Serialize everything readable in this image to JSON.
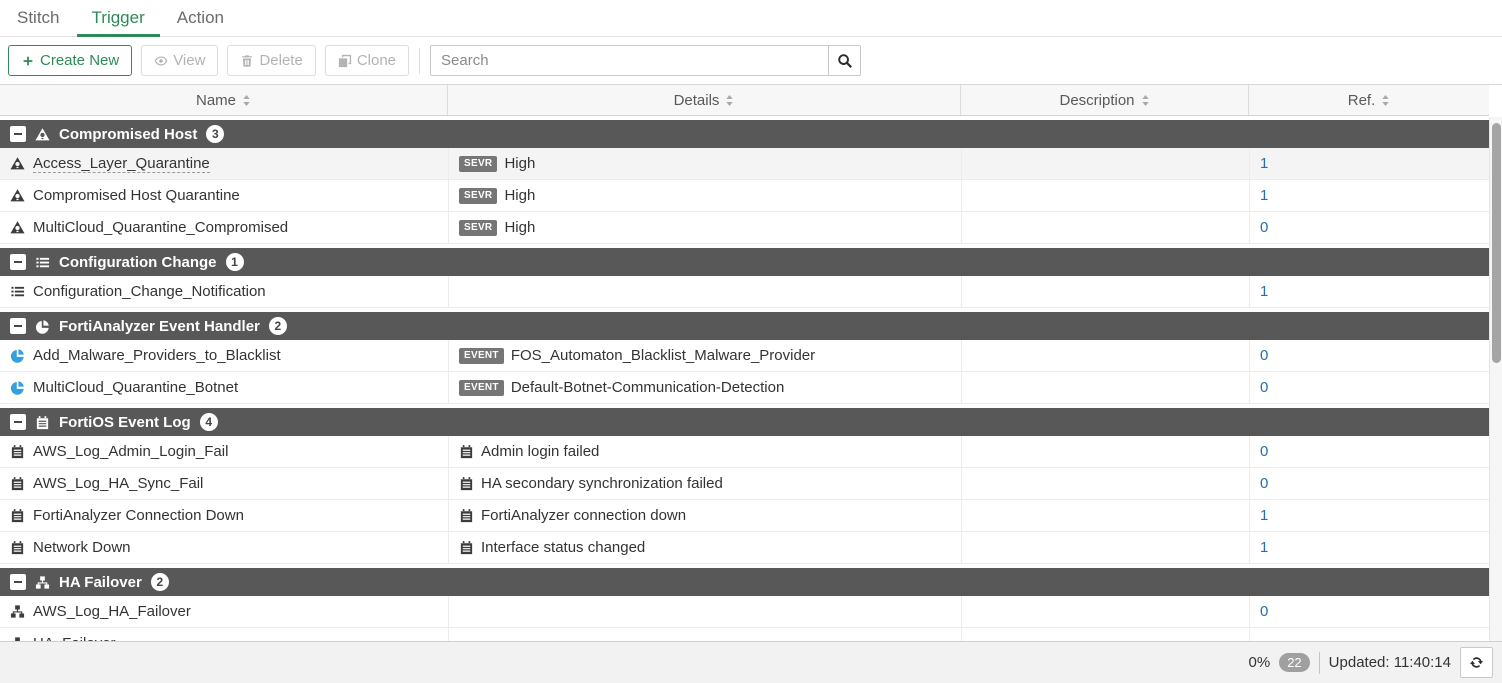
{
  "tabs": [
    {
      "label": "Stitch",
      "active": false
    },
    {
      "label": "Trigger",
      "active": true
    },
    {
      "label": "Action",
      "active": false
    }
  ],
  "toolbar": {
    "buttons": [
      {
        "label": "Create New",
        "icon": "plus-icon",
        "primary": true,
        "enabled": true
      },
      {
        "label": "View",
        "icon": "eye-icon",
        "primary": false,
        "enabled": false
      },
      {
        "label": "Delete",
        "icon": "trash-icon",
        "primary": false,
        "enabled": false
      },
      {
        "label": "Clone",
        "icon": "clone-icon",
        "primary": false,
        "enabled": false
      }
    ],
    "search_placeholder": "Search",
    "search_value": ""
  },
  "table": {
    "columns": [
      {
        "label": "Name"
      },
      {
        "label": "Details"
      },
      {
        "label": "Description"
      },
      {
        "label": "Ref."
      }
    ],
    "groups": [
      {
        "label": "Compromised Host",
        "count": "3",
        "icon": "compromised-host-icon",
        "rows": [
          {
            "name": "Access_Layer_Quarantine",
            "icon": "compromised-host-icon",
            "details_badge": "SEVR",
            "details": "High",
            "description": "",
            "ref": "1",
            "hovered": true
          },
          {
            "name": "Compromised Host Quarantine",
            "icon": "compromised-host-icon",
            "details_badge": "SEVR",
            "details": "High",
            "description": "",
            "ref": "1"
          },
          {
            "name": "MultiCloud_Quarantine_Compromised",
            "icon": "compromised-host-icon",
            "details_badge": "SEVR",
            "details": "High",
            "description": "",
            "ref": "0"
          }
        ]
      },
      {
        "label": "Configuration Change",
        "count": "1",
        "icon": "configuration-change-icon",
        "rows": [
          {
            "name": "Configuration_Change_Notification",
            "icon": "configuration-change-icon",
            "details": "",
            "description": "",
            "ref": "1"
          }
        ]
      },
      {
        "label": "FortiAnalyzer Event Handler",
        "count": "2",
        "icon": "event-handler-icon",
        "rows": [
          {
            "name": "Add_Malware_Providers_to_Blacklist",
            "icon": "event-handler-icon",
            "details_badge": "EVENT",
            "details": "FOS_Automaton_Blacklist_Malware_Provider",
            "description": "",
            "ref": "0"
          },
          {
            "name": "MultiCloud_Quarantine_Botnet",
            "icon": "event-handler-icon",
            "details_badge": "EVENT",
            "details": "Default-Botnet-Communication-Detection",
            "description": "",
            "ref": "0"
          }
        ]
      },
      {
        "label": "FortiOS Event Log",
        "count": "4",
        "icon": "event-log-icon",
        "rows": [
          {
            "name": "AWS_Log_Admin_Login_Fail",
            "icon": "event-log-icon",
            "details_icon": "event-log-icon",
            "details": "Admin login failed",
            "description": "",
            "ref": "0"
          },
          {
            "name": "AWS_Log_HA_Sync_Fail",
            "icon": "event-log-icon",
            "details_icon": "event-log-icon",
            "details": "HA secondary synchronization failed",
            "description": "",
            "ref": "0"
          },
          {
            "name": "FortiAnalyzer Connection Down",
            "icon": "event-log-icon",
            "details_icon": "event-log-icon",
            "details": "FortiAnalyzer connection down",
            "description": "",
            "ref": "1"
          },
          {
            "name": "Network Down",
            "icon": "event-log-icon",
            "details_icon": "event-log-icon",
            "details": "Interface status changed",
            "description": "",
            "ref": "1"
          }
        ]
      },
      {
        "label": "HA Failover",
        "count": "2",
        "icon": "ha-failover-icon",
        "rows": [
          {
            "name": "AWS_Log_HA_Failover",
            "icon": "ha-failover-icon",
            "details": "",
            "description": "",
            "ref": "0"
          },
          {
            "name": "HA_Failover",
            "icon": "ha-failover-icon",
            "details": "",
            "description": "",
            "ref": ""
          }
        ]
      }
    ]
  },
  "statusbar": {
    "progress": "0%",
    "count_badge": "22",
    "updated": "Updated: 11:40:14"
  },
  "colors": {
    "accent_green": "#2e8b57",
    "link_blue": "#2470ae",
    "group_bar": "#585858",
    "detail_badge_gray": "#767676",
    "event_handler_icon_blue": "#35a0dc"
  }
}
